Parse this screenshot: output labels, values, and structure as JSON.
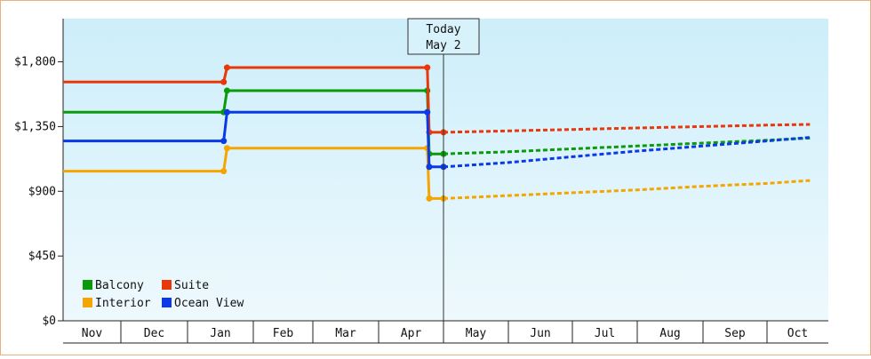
{
  "chart_data": {
    "type": "line",
    "title": "",
    "xlabel": "",
    "ylabel": "",
    "ylim": [
      0,
      2100
    ],
    "yticks": [
      0,
      450,
      900,
      1350,
      1800
    ],
    "ytick_labels": [
      "$0",
      "$450",
      "$900",
      "$1,350",
      "$1,800"
    ],
    "month_labels": [
      "Nov",
      "Dec",
      "Jan",
      "Feb",
      "Mar",
      "Apr",
      "May",
      "Jun",
      "Jul",
      "Aug",
      "Sep",
      "Oct"
    ],
    "today": {
      "line1": "Today",
      "line2": "May 2"
    },
    "legend": {
      "placement": "bottom-left"
    },
    "grid": false,
    "background": [
      "#cdeefa",
      "#eef9fd"
    ],
    "series": [
      {
        "name": "Balcony",
        "color": "#0a9a0a",
        "historical": [
          [
            0,
            1450
          ],
          [
            2.55,
            1450
          ],
          [
            2.6,
            1600
          ],
          [
            5.75,
            1600
          ],
          [
            5.78,
            1160
          ],
          [
            6.0,
            1160
          ]
        ],
        "forecast": [
          [
            6.0,
            1160
          ],
          [
            7.0,
            1175
          ],
          [
            8.0,
            1195
          ],
          [
            9.0,
            1215
          ],
          [
            10.0,
            1235
          ],
          [
            11.0,
            1255
          ],
          [
            11.7,
            1270
          ]
        ]
      },
      {
        "name": "Suite",
        "color": "#e8380a",
        "historical": [
          [
            0,
            1660
          ],
          [
            2.55,
            1660
          ],
          [
            2.6,
            1760
          ],
          [
            5.75,
            1760
          ],
          [
            5.78,
            1310
          ],
          [
            6.0,
            1310
          ]
        ],
        "forecast": [
          [
            6.0,
            1310
          ],
          [
            7.0,
            1320
          ],
          [
            8.0,
            1330
          ],
          [
            9.0,
            1340
          ],
          [
            10.0,
            1350
          ],
          [
            11.0,
            1360
          ],
          [
            11.7,
            1365
          ]
        ]
      },
      {
        "name": "Interior",
        "color": "#f5a500",
        "historical": [
          [
            0,
            1040
          ],
          [
            2.55,
            1040
          ],
          [
            2.6,
            1200
          ],
          [
            5.75,
            1200
          ],
          [
            5.78,
            850
          ],
          [
            6.0,
            850
          ]
        ],
        "forecast": [
          [
            6.0,
            850
          ],
          [
            7.0,
            870
          ],
          [
            8.0,
            890
          ],
          [
            9.0,
            910
          ],
          [
            10.0,
            935
          ],
          [
            11.0,
            955
          ],
          [
            11.7,
            975
          ]
        ]
      },
      {
        "name": "Ocean View",
        "color": "#0a3ae8",
        "historical": [
          [
            0,
            1250
          ],
          [
            2.55,
            1250
          ],
          [
            2.6,
            1450
          ],
          [
            5.75,
            1450
          ],
          [
            5.78,
            1070
          ],
          [
            6.0,
            1070
          ]
        ],
        "forecast": [
          [
            6.0,
            1070
          ],
          [
            7.0,
            1100
          ],
          [
            8.0,
            1140
          ],
          [
            9.0,
            1180
          ],
          [
            10.0,
            1215
          ],
          [
            11.0,
            1250
          ],
          [
            11.7,
            1275
          ]
        ]
      }
    ]
  }
}
